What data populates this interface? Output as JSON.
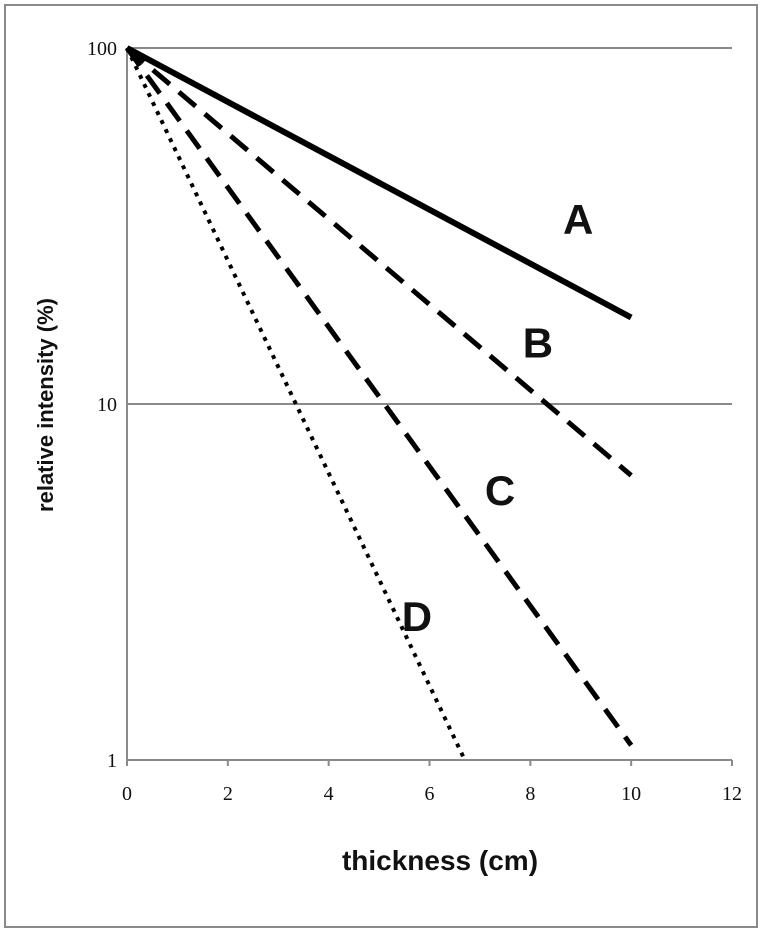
{
  "chart_data": {
    "type": "line",
    "title": "",
    "xlabel": "thickness (cm)",
    "ylabel": "relative intensity (%)",
    "xlim": [
      0,
      12
    ],
    "ylim": [
      1,
      100
    ],
    "yscale": "log",
    "x_ticks": [
      "0",
      "2",
      "4",
      "6",
      "8",
      "10",
      "12"
    ],
    "y_ticks": [
      "1",
      "10",
      "100"
    ],
    "grid": "horizontal major gridlines",
    "legend": "none (series labeled directly on lines)",
    "series": [
      {
        "name": "A",
        "style": "solid",
        "x": [
          0,
          10
        ],
        "y": [
          100,
          17.5
        ]
      },
      {
        "name": "B",
        "style": "dashed",
        "x": [
          0,
          10
        ],
        "y": [
          100,
          6.3
        ]
      },
      {
        "name": "C",
        "style": "dashed",
        "x": [
          0,
          10
        ],
        "y": [
          100,
          1.1
        ]
      },
      {
        "name": "D",
        "style": "dotted",
        "x": [
          0,
          6.7
        ],
        "y": [
          100,
          1
        ]
      }
    ]
  }
}
